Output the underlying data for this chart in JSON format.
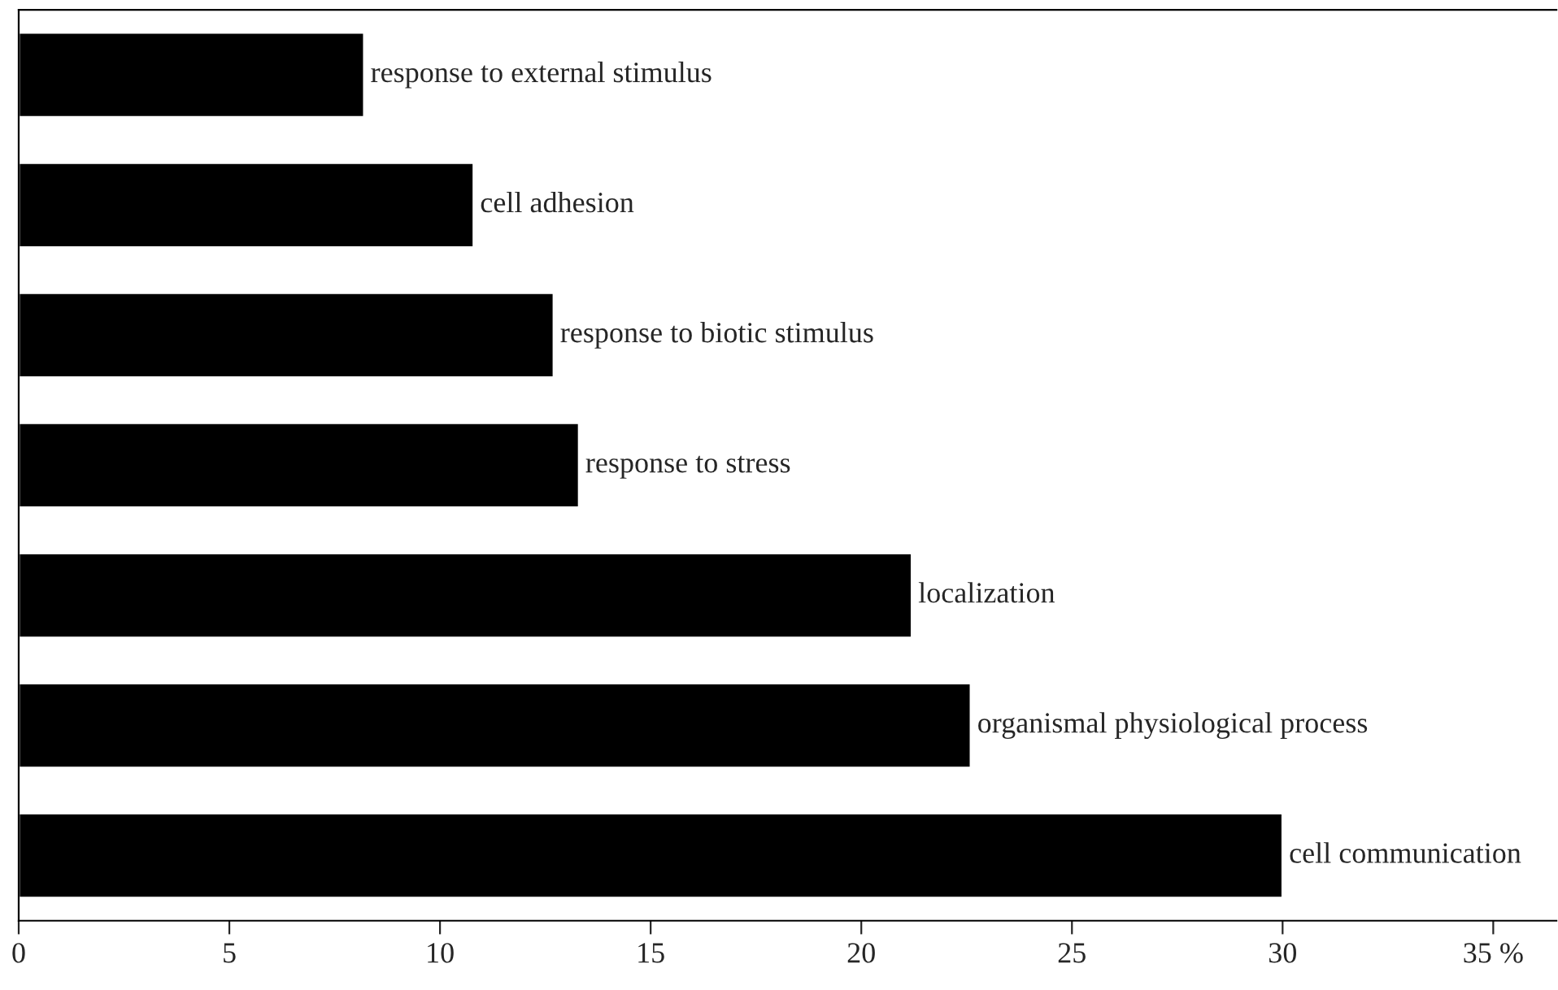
{
  "chart_data": {
    "type": "bar",
    "orientation": "horizontal",
    "categories": [
      "response to external stimulus",
      "cell adhesion",
      "response to biotic stimulus",
      "response to stress",
      "localization",
      "organismal physiological process",
      "cell communication"
    ],
    "values": [
      8.2,
      10.8,
      12.7,
      13.3,
      21.2,
      22.6,
      30.0
    ],
    "color": "#000000",
    "xlim": [
      0,
      36.5
    ],
    "xticks": [
      0,
      5,
      10,
      15,
      20,
      25,
      30,
      {
        "value": 35,
        "label": "35 %"
      }
    ],
    "tick_labels": "x",
    "grid": false
  }
}
